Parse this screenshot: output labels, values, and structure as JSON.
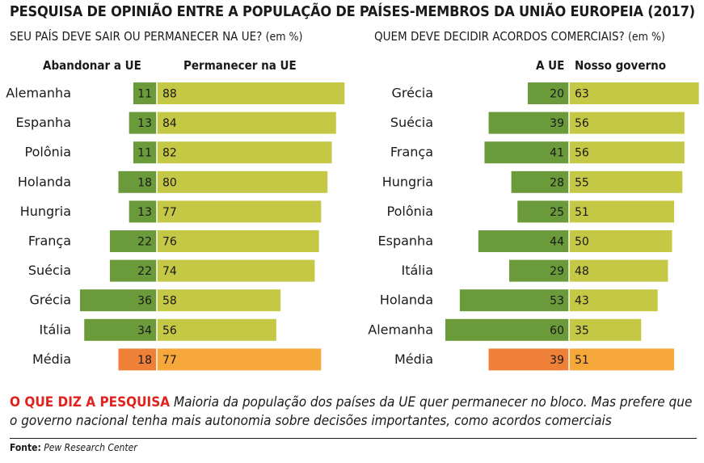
{
  "title": "PESQUISA DE OPINIÃO ENTRE A POPULAÇÃO DE PAÍSES-MEMBROS DA UNIÃO EUROPEIA (2017)",
  "chart_data": [
    {
      "type": "bar",
      "subtitle": "SEU PAÍS DEVE SAIR OU PERMANECER NA UE?",
      "unit": "(em %)",
      "categories": [
        "Alemanha",
        "Espanha",
        "Polônia",
        "Holanda",
        "Hungria",
        "França",
        "Suécia",
        "Grécia",
        "Itália",
        "Média"
      ],
      "series": [
        {
          "name": "Abandonar a UE",
          "values": [
            11,
            13,
            11,
            18,
            13,
            22,
            22,
            36,
            34,
            18
          ]
        },
        {
          "name": "Permanecer na UE",
          "values": [
            88,
            84,
            82,
            80,
            77,
            76,
            74,
            58,
            56,
            77
          ]
        }
      ]
    },
    {
      "type": "bar",
      "subtitle": "QUEM DEVE DECIDIR ACORDOS COMERCIAIS?",
      "unit": "(em %)",
      "categories": [
        "Grécia",
        "Suécia",
        "França",
        "Hungria",
        "Polônia",
        "Espanha",
        "Itália",
        "Holanda",
        "Alemanha",
        "Média"
      ],
      "series": [
        {
          "name": "A UE",
          "values": [
            20,
            39,
            41,
            28,
            25,
            44,
            29,
            53,
            60,
            39
          ]
        },
        {
          "name": "Nosso governo",
          "values": [
            63,
            56,
            56,
            55,
            51,
            50,
            48,
            43,
            35,
            51
          ]
        }
      ]
    }
  ],
  "colors": {
    "left_bar": "#6a9a3a",
    "right_bar": "#c4c844",
    "avg_left": "#ef8038",
    "avg_right": "#f6a83a",
    "lead_text": "#e0231f"
  },
  "footer": {
    "lead": "O QUE DIZ A PESQUISA",
    "text": "Maioria da população dos países da UE quer permanecer no bloco. Mas prefere que o governo nacional tenha mais autonomia sobre decisões importantes, como acordos comerciais"
  },
  "source": {
    "label": "Fonte:",
    "name": "Pew Research Center"
  }
}
